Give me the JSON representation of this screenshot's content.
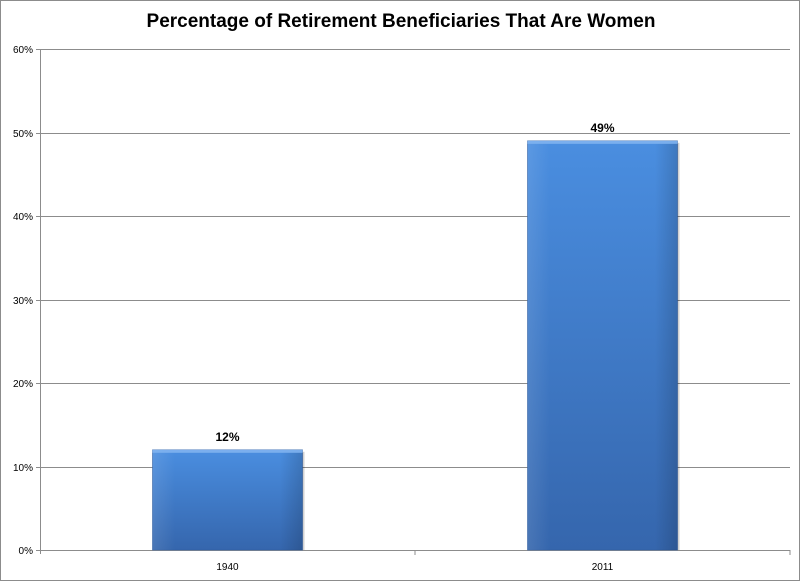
{
  "chart_data": {
    "type": "bar",
    "title": "Percentage of Retirement Beneficiaries That Are Women",
    "categories": [
      "1940",
      "2011"
    ],
    "values": [
      12,
      49
    ],
    "value_labels": [
      "12%",
      "49%"
    ],
    "xlabel": "",
    "ylabel": "",
    "ylim": [
      0,
      60
    ],
    "yticks": [
      0,
      10,
      20,
      30,
      40,
      50,
      60
    ],
    "ytick_labels": [
      "0%",
      "10%",
      "20%",
      "30%",
      "40%",
      "50%",
      "60%"
    ],
    "grid": "horizontal",
    "legend": "none",
    "colors": {
      "bar_top": "#4a8ee0",
      "bar_bottom": "#3566ad",
      "grid": "#8c8c8c",
      "axis": "#8c8c8c"
    }
  }
}
